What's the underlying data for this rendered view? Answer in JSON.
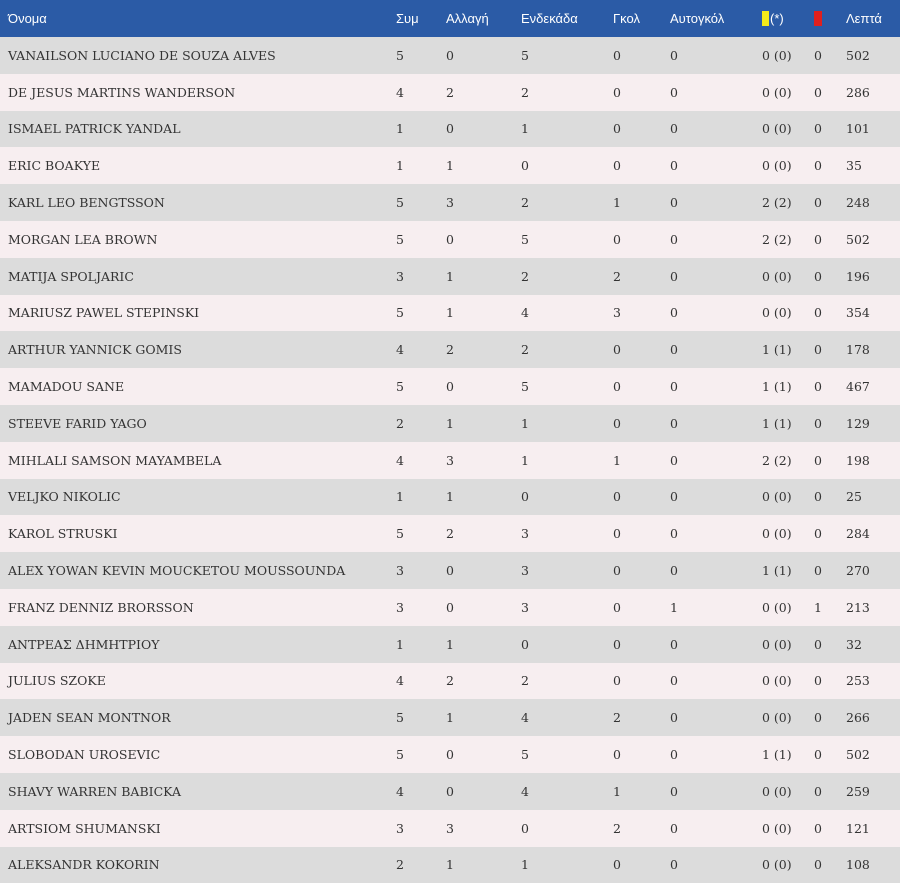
{
  "columns": {
    "name": "Όνομα",
    "apps": "Συμ",
    "subs": "Αλλαγή",
    "starts": "Ενδεκάδα",
    "goals": "Γκολ",
    "own_goals": "Αυτογκόλ",
    "yellow": "(*)",
    "minutes": "Λεπτά"
  },
  "colors": {
    "header_bg": "#2b5ba6",
    "row_odd": "#dcdcdc",
    "row_even": "#f7eef0",
    "yellow_card": "#f3ea1a",
    "red_card": "#e0201f"
  },
  "rows": [
    {
      "name": "VANAILSON LUCIANO DE SOUZA ALVES",
      "apps": "5",
      "subs": "0",
      "starts": "5",
      "goals": "0",
      "own_goals": "0",
      "yellow": "0 (0)",
      "red": "0",
      "minutes": "502"
    },
    {
      "name": "DE JESUS MARTINS WANDERSON",
      "apps": "4",
      "subs": "2",
      "starts": "2",
      "goals": "0",
      "own_goals": "0",
      "yellow": "0 (0)",
      "red": "0",
      "minutes": "286"
    },
    {
      "name": "ISMAEL PATRICK YANDAL",
      "apps": "1",
      "subs": "0",
      "starts": "1",
      "goals": "0",
      "own_goals": "0",
      "yellow": "0 (0)",
      "red": "0",
      "minutes": "101"
    },
    {
      "name": "ERIC BOAKYE",
      "apps": "1",
      "subs": "1",
      "starts": "0",
      "goals": "0",
      "own_goals": "0",
      "yellow": "0 (0)",
      "red": "0",
      "minutes": "35"
    },
    {
      "name": "KARL LEO BENGTSSON",
      "apps": "5",
      "subs": "3",
      "starts": "2",
      "goals": "1",
      "own_goals": "0",
      "yellow": "2 (2)",
      "red": "0",
      "minutes": "248"
    },
    {
      "name": "MORGAN LEA BROWN",
      "apps": "5",
      "subs": "0",
      "starts": "5",
      "goals": "0",
      "own_goals": "0",
      "yellow": "2 (2)",
      "red": "0",
      "minutes": "502"
    },
    {
      "name": "MATIJA SPOLJARIC",
      "apps": "3",
      "subs": "1",
      "starts": "2",
      "goals": "2",
      "own_goals": "0",
      "yellow": "0 (0)",
      "red": "0",
      "minutes": "196"
    },
    {
      "name": "MARIUSZ PAWEL STEPINSKI",
      "apps": "5",
      "subs": "1",
      "starts": "4",
      "goals": "3",
      "own_goals": "0",
      "yellow": "0 (0)",
      "red": "0",
      "minutes": "354"
    },
    {
      "name": "ARTHUR YANNICK GOMIS",
      "apps": "4",
      "subs": "2",
      "starts": "2",
      "goals": "0",
      "own_goals": "0",
      "yellow": "1 (1)",
      "red": "0",
      "minutes": "178"
    },
    {
      "name": "MAMADOU SANE",
      "apps": "5",
      "subs": "0",
      "starts": "5",
      "goals": "0",
      "own_goals": "0",
      "yellow": "1 (1)",
      "red": "0",
      "minutes": "467"
    },
    {
      "name": "STEEVE FARID YAGO",
      "apps": "2",
      "subs": "1",
      "starts": "1",
      "goals": "0",
      "own_goals": "0",
      "yellow": "1 (1)",
      "red": "0",
      "minutes": "129"
    },
    {
      "name": "MIHLALI SAMSON MAYAMBELA",
      "apps": "4",
      "subs": "3",
      "starts": "1",
      "goals": "1",
      "own_goals": "0",
      "yellow": "2 (2)",
      "red": "0",
      "minutes": "198"
    },
    {
      "name": "VELJKO NIKOLIC",
      "apps": "1",
      "subs": "1",
      "starts": "0",
      "goals": "0",
      "own_goals": "0",
      "yellow": "0 (0)",
      "red": "0",
      "minutes": "25"
    },
    {
      "name": "KAROL STRUSKI",
      "apps": "5",
      "subs": "2",
      "starts": "3",
      "goals": "0",
      "own_goals": "0",
      "yellow": "0 (0)",
      "red": "0",
      "minutes": "284"
    },
    {
      "name": "ALEX YOWAN KEVIN MOUCKETOU MOUSSOUNDA",
      "apps": "3",
      "subs": "0",
      "starts": "3",
      "goals": "0",
      "own_goals": "0",
      "yellow": "1 (1)",
      "red": "0",
      "minutes": "270"
    },
    {
      "name": "FRANZ DENNIZ BRORSSON",
      "apps": "3",
      "subs": "0",
      "starts": "3",
      "goals": "0",
      "own_goals": "1",
      "yellow": "0 (0)",
      "red": "1",
      "minutes": "213"
    },
    {
      "name": "ΑΝΤΡΕΑΣ ΔΗΜΗΤΡΙΟΥ",
      "apps": "1",
      "subs": "1",
      "starts": "0",
      "goals": "0",
      "own_goals": "0",
      "yellow": "0 (0)",
      "red": "0",
      "minutes": "32"
    },
    {
      "name": "JULIUS SZOKE",
      "apps": "4",
      "subs": "2",
      "starts": "2",
      "goals": "0",
      "own_goals": "0",
      "yellow": "0 (0)",
      "red": "0",
      "minutes": "253"
    },
    {
      "name": "JADEN SEAN MONTNOR",
      "apps": "5",
      "subs": "1",
      "starts": "4",
      "goals": "2",
      "own_goals": "0",
      "yellow": "0 (0)",
      "red": "0",
      "minutes": "266"
    },
    {
      "name": "SLOBODAN UROSEVIC",
      "apps": "5",
      "subs": "0",
      "starts": "5",
      "goals": "0",
      "own_goals": "0",
      "yellow": "1 (1)",
      "red": "0",
      "minutes": "502"
    },
    {
      "name": "SHAVY WARREN BABICKA",
      "apps": "4",
      "subs": "0",
      "starts": "4",
      "goals": "1",
      "own_goals": "0",
      "yellow": "0 (0)",
      "red": "0",
      "minutes": "259"
    },
    {
      "name": "ARTSIOM SHUMANSKI",
      "apps": "3",
      "subs": "3",
      "starts": "0",
      "goals": "2",
      "own_goals": "0",
      "yellow": "0 (0)",
      "red": "0",
      "minutes": "121"
    },
    {
      "name": "ALEKSANDR KOKORIN",
      "apps": "2",
      "subs": "1",
      "starts": "1",
      "goals": "0",
      "own_goals": "0",
      "yellow": "0 (0)",
      "red": "0",
      "minutes": "108"
    }
  ]
}
